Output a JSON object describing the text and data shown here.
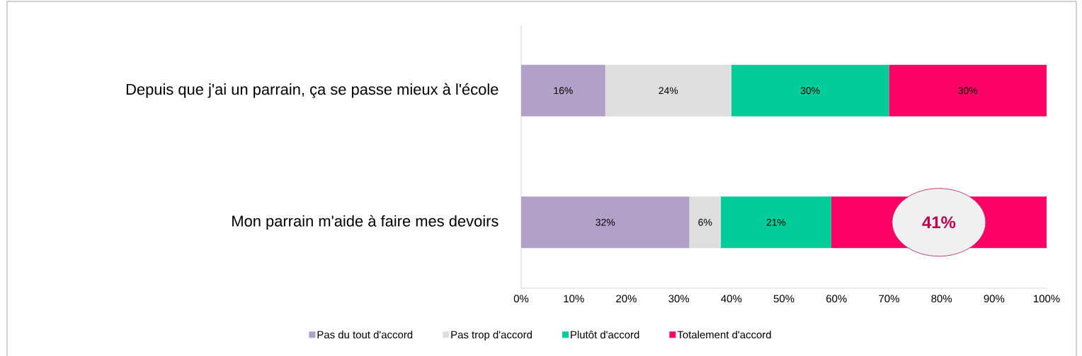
{
  "chart_data": {
    "type": "bar",
    "orientation": "horizontal",
    "stacked": true,
    "categories": [
      "Depuis que j'ai un parrain, ça se passe mieux à l'école",
      "Mon parrain m'aide à faire mes devoirs"
    ],
    "series": [
      {
        "name": "Pas du tout d'accord",
        "color": "#b1a0c7",
        "values": [
          16,
          32
        ],
        "value_labels": [
          "16%",
          "32%"
        ]
      },
      {
        "name": "Pas trop d'accord",
        "color": "#dedede",
        "values": [
          24,
          6
        ],
        "value_labels": [
          "24%",
          "6%"
        ]
      },
      {
        "name": "Plutôt d'accord",
        "color": "#00cc99",
        "values": [
          30,
          21
        ],
        "value_labels": [
          "30%",
          "21%"
        ]
      },
      {
        "name": "Totalement d'accord",
        "color": "#ff0066",
        "values": [
          30,
          41
        ],
        "value_labels": [
          "30%",
          null
        ]
      }
    ],
    "annotations": [
      "41%"
    ],
    "xlim": [
      0,
      100
    ],
    "xticks": [
      {
        "value": 0,
        "label": "0%"
      },
      {
        "value": 10,
        "label": "10%"
      },
      {
        "value": 20,
        "label": "20%"
      },
      {
        "value": 30,
        "label": "30%"
      },
      {
        "value": 40,
        "label": "40%"
      },
      {
        "value": 50,
        "label": "50%"
      },
      {
        "value": 60,
        "label": "60%"
      },
      {
        "value": 70,
        "label": "70%"
      },
      {
        "value": 80,
        "label": "80%"
      },
      {
        "value": 90,
        "label": "90%"
      },
      {
        "value": 100,
        "label": "100%"
      }
    ],
    "grid": false,
    "legend": "bottom"
  }
}
